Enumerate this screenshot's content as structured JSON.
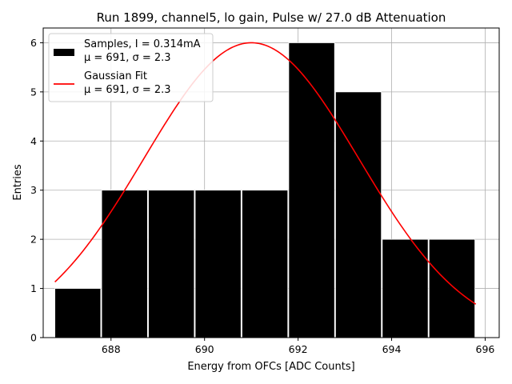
{
  "chart_data": {
    "type": "bar",
    "title": "Run 1899, channel5, lo gain, Pulse w/ 27.0 dB Attenuation",
    "xlabel": "Energy from OFCs [ADC Counts]",
    "ylabel": "Entries",
    "xlim": [
      686.55,
      696.3
    ],
    "ylim": [
      0,
      6.3
    ],
    "grid": true,
    "xticks": [
      688,
      690,
      692,
      694,
      696
    ],
    "yticks": [
      0,
      1,
      2,
      3,
      4,
      5,
      6
    ],
    "histogram": {
      "name": "Samples",
      "bin_edges": [
        686.8,
        687.8,
        688.8,
        689.8,
        690.8,
        691.8,
        692.8,
        693.8,
        694.8,
        695.8
      ],
      "bin_left_edges": [
        686.8,
        687.8,
        688.8,
        689.8,
        690.8,
        691.8,
        692.8,
        693.8,
        694.8
      ],
      "bin_widths": [
        0.98,
        0.98,
        0.98,
        0.98,
        0.98,
        0.98,
        0.98,
        0.98,
        0.98
      ],
      "counts": [
        1,
        3,
        3,
        3,
        3,
        6,
        5,
        2,
        2
      ],
      "color": "#000000"
    },
    "fit": {
      "name": "Gaussian Fit",
      "mean": 691.0,
      "sigma": 2.3,
      "amplitude": 6.0,
      "x_range": [
        686.8,
        695.8
      ],
      "color": "#ff0000"
    },
    "legend": {
      "position": "top-left",
      "entries": [
        {
          "line1": "Samples, I = 0.314mA",
          "line2": "μ = 691, σ = 2.3"
        },
        {
          "line1": "Gaussian Fit",
          "line2": "μ = 691, σ = 2.3"
        }
      ]
    }
  }
}
